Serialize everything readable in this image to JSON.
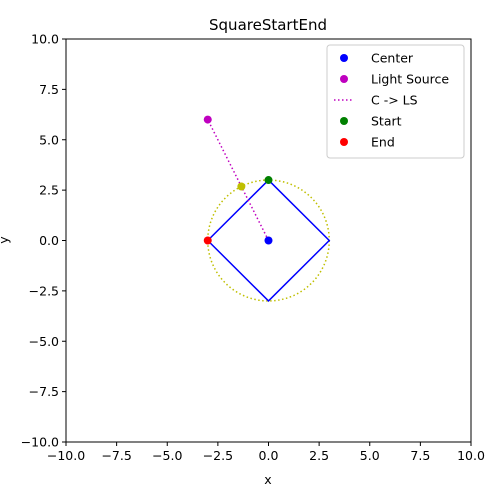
{
  "chart_data": {
    "type": "scatter",
    "title": "SquareStartEnd",
    "xlabel": "x",
    "ylabel": "y",
    "xlim": [
      -10,
      10
    ],
    "ylim": [
      -10,
      10
    ],
    "x_ticks": [
      -10,
      -7.5,
      -5,
      -2.5,
      0,
      2.5,
      5,
      7.5,
      10
    ],
    "y_ticks": [
      -10,
      -7.5,
      -5,
      -2.5,
      0,
      2.5,
      5,
      7.5,
      10
    ],
    "x_tick_labels": [
      "−10.0",
      "−7.5",
      "−5.0",
      "−2.5",
      "0.0",
      "2.5",
      "5.0",
      "7.5",
      "10.0"
    ],
    "y_tick_labels": [
      "−10.0",
      "−7.5",
      "−5.0",
      "−2.5",
      "0.0",
      "2.5",
      "5.0",
      "7.5",
      "10.0"
    ],
    "grid": false,
    "legend_position": "top-right",
    "circle": {
      "center": [
        0,
        0
      ],
      "radius": 3,
      "color": "#bfbf00",
      "style": "dotted"
    },
    "square": {
      "points": [
        [
          0,
          3
        ],
        [
          3,
          0
        ],
        [
          0,
          -3
        ],
        [
          -3,
          0
        ]
      ],
      "color": "#0000ff"
    },
    "light_ray": {
      "from": [
        0,
        0
      ],
      "to": [
        -3,
        6
      ],
      "color": "#bf00bf",
      "style": "dotted"
    },
    "intersection_point": {
      "x": -1.34,
      "y": 2.68,
      "color": "#bfbf00"
    },
    "series": [
      {
        "name": "Center",
        "marker": "point",
        "color": "#0000ff",
        "points": [
          [
            0,
            0
          ]
        ]
      },
      {
        "name": "Light Source",
        "marker": "point",
        "color": "#bf00bf",
        "points": [
          [
            -3,
            6
          ]
        ]
      },
      {
        "name": "C -> LS",
        "marker": "dotted-line",
        "color": "#bf00bf",
        "points": []
      },
      {
        "name": "Start",
        "marker": "point",
        "color": "#008000",
        "points": [
          [
            0,
            3
          ]
        ]
      },
      {
        "name": "End",
        "marker": "point",
        "color": "#ff0000",
        "points": [
          [
            -3,
            0
          ]
        ]
      }
    ]
  }
}
